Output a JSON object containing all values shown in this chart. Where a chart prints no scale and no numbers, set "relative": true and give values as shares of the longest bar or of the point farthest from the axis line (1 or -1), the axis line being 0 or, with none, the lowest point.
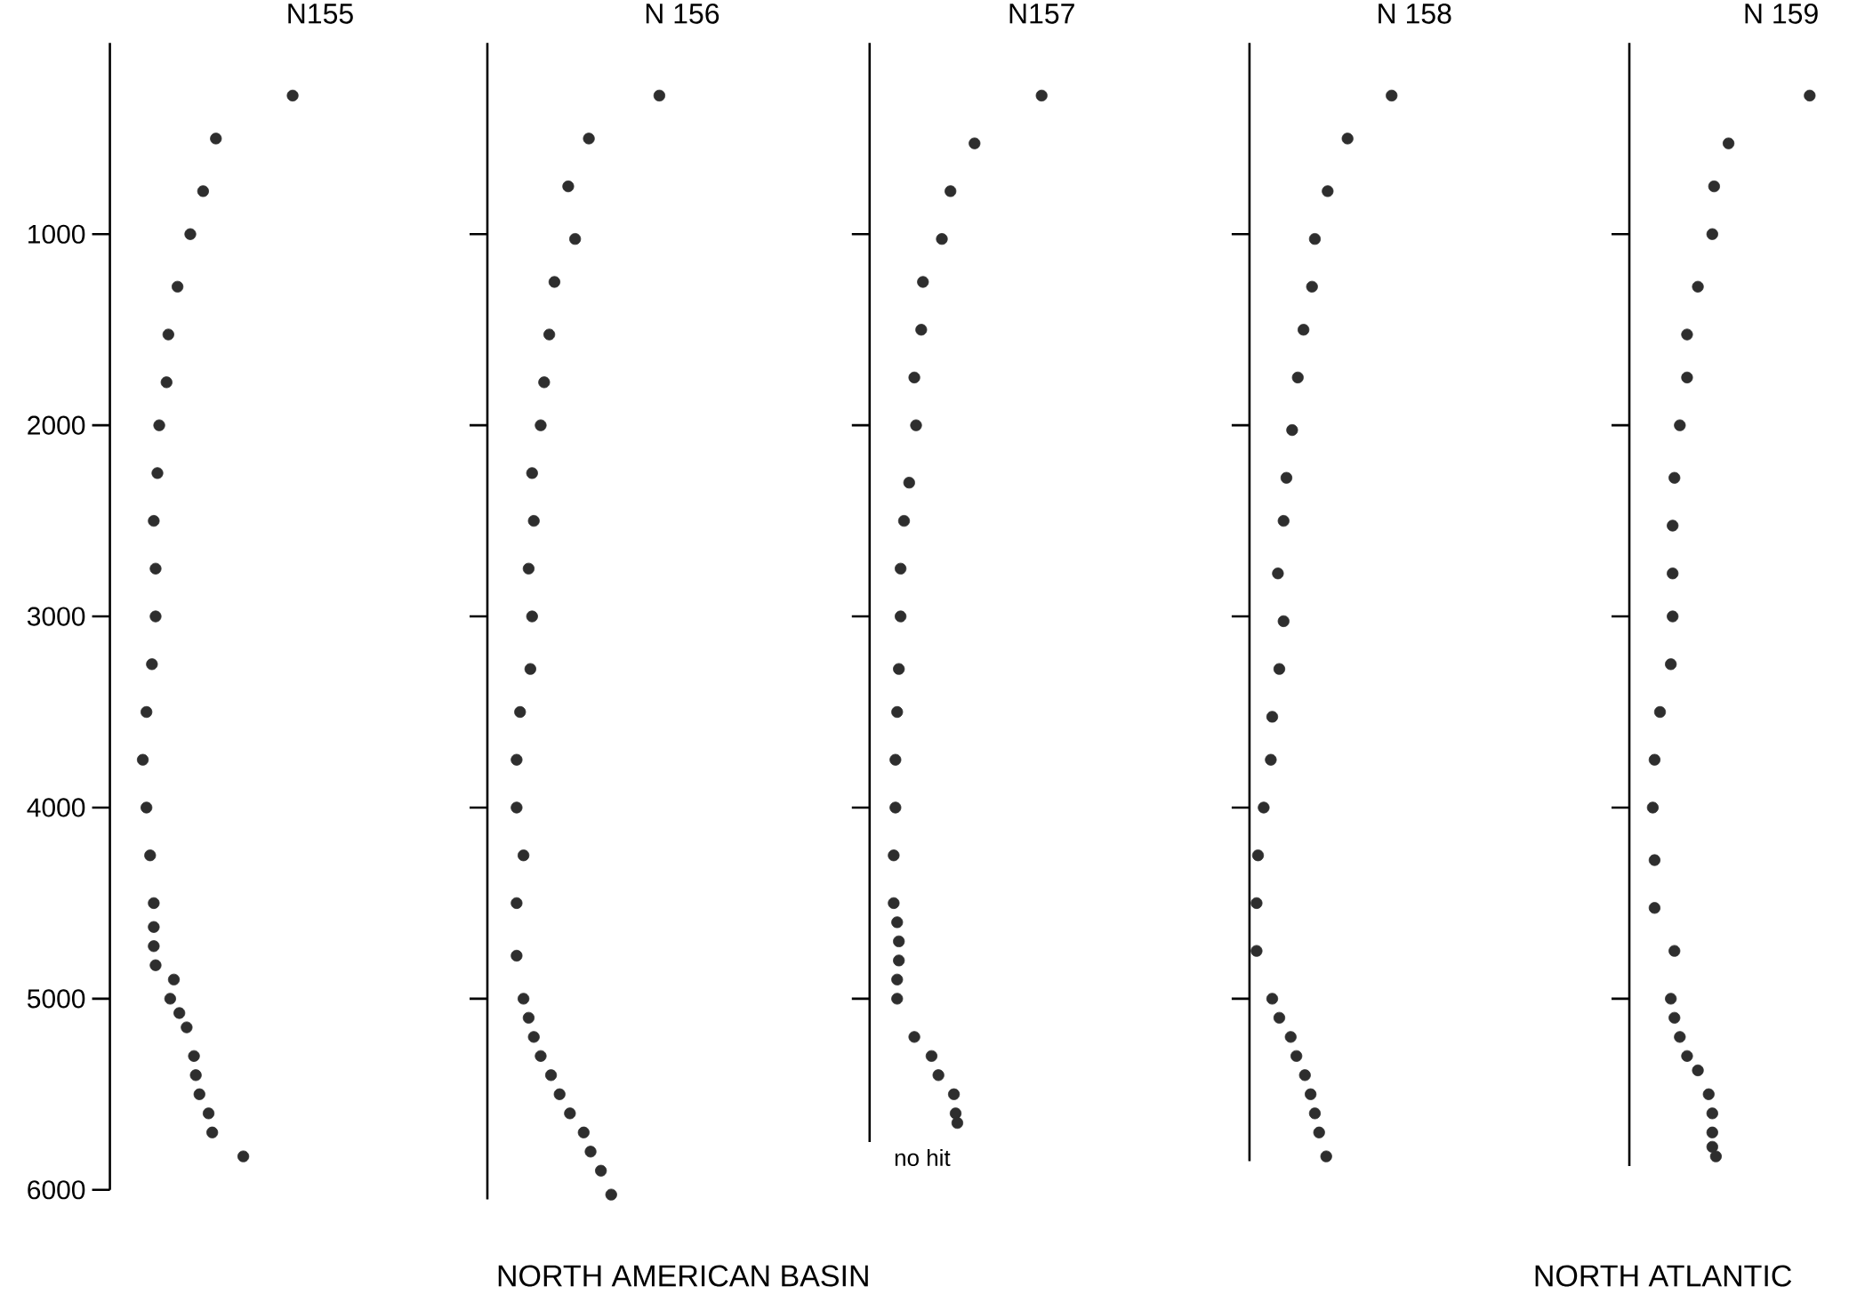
{
  "chart_data": [
    {
      "type": "scatter",
      "title": "N155",
      "orientation": "horizontal",
      "relative": true,
      "marker": "circle",
      "color": "#2e2e2e",
      "tick_labels": "y",
      "x": [
        275,
        500,
        775,
        1000,
        1275,
        1525,
        1775,
        2000,
        2250,
        2500,
        2750,
        3000,
        3250,
        3500,
        3750,
        4000,
        4250,
        4500,
        4625,
        4725,
        4825,
        4900,
        5000,
        5075,
        5150,
        5300,
        5400,
        5500,
        5600,
        5700,
        5825
      ],
      "values": [
        1,
        0.58,
        0.51,
        0.44,
        0.37,
        0.32,
        0.31,
        0.27,
        0.26,
        0.24,
        0.25,
        0.25,
        0.23,
        0.2,
        0.18,
        0.2,
        0.22,
        0.24,
        0.24,
        0.24,
        0.25,
        0.35,
        0.33,
        0.38,
        0.42,
        0.46,
        0.47,
        0.49,
        0.54,
        0.56,
        0.73
      ],
      "ylim": [
        6000,
        0
      ],
      "yticks": [
        1000,
        2000,
        3000,
        4000,
        5000,
        6000
      ]
    },
    {
      "type": "scatter",
      "title": "N 156",
      "orientation": "horizontal",
      "relative": true,
      "marker": "circle",
      "color": "#2e2e2e",
      "tick_labels": false,
      "x": [
        275,
        500,
        750,
        1025,
        1250,
        1525,
        1775,
        2000,
        2250,
        2500,
        2750,
        3000,
        3275,
        3500,
        3750,
        4000,
        4250,
        4500,
        4775,
        5000,
        5100,
        5200,
        5300,
        5400,
        5500,
        5600,
        5700,
        5800,
        5900,
        6025
      ],
      "values": [
        1,
        0.59,
        0.47,
        0.51,
        0.39,
        0.36,
        0.33,
        0.31,
        0.26,
        0.27,
        0.24,
        0.26,
        0.25,
        0.19,
        0.17,
        0.17,
        0.21,
        0.17,
        0.17,
        0.21,
        0.24,
        0.27,
        0.31,
        0.37,
        0.42,
        0.48,
        0.56,
        0.6,
        0.66,
        0.72
      ],
      "ylim": [
        6050,
        0
      ],
      "yticks": [
        1000,
        2000,
        3000,
        4000,
        5000
      ],
      "annotations": [
        "NORTH AMERICAN BASIN"
      ]
    },
    {
      "type": "scatter",
      "title": "N157",
      "orientation": "horizontal",
      "relative": true,
      "marker": "circle",
      "color": "#2e2e2e",
      "tick_labels": false,
      "x": [
        275,
        525,
        775,
        1025,
        1250,
        1500,
        1750,
        2000,
        2300,
        2500,
        2750,
        3000,
        3275,
        3500,
        3750,
        4000,
        4250,
        4500,
        4600,
        4700,
        4800,
        4900,
        5000,
        5200,
        5300,
        5400,
        5500,
        5600,
        5650
      ],
      "values": [
        1,
        0.61,
        0.47,
        0.42,
        0.31,
        0.3,
        0.26,
        0.27,
        0.23,
        0.2,
        0.18,
        0.18,
        0.17,
        0.16,
        0.15,
        0.15,
        0.14,
        0.14,
        0.16,
        0.17,
        0.17,
        0.16,
        0.16,
        0.26,
        0.36,
        0.4,
        0.49,
        0.5,
        0.51
      ],
      "ylim": [
        5750,
        0
      ],
      "yticks": [
        1000,
        2000,
        3000,
        4000,
        5000
      ],
      "annotations": [
        "no hit"
      ]
    },
    {
      "type": "scatter",
      "title": "N 158",
      "orientation": "horizontal",
      "relative": true,
      "marker": "circle",
      "color": "#2e2e2e",
      "tick_labels": false,
      "x": [
        275,
        500,
        775,
        1025,
        1275,
        1500,
        1750,
        2025,
        2275,
        2500,
        2775,
        3025,
        3275,
        3525,
        3750,
        4000,
        4250,
        4500,
        4750,
        5000,
        5100,
        5200,
        5300,
        5400,
        5500,
        5600,
        5700,
        5825
      ],
      "values": [
        1,
        0.69,
        0.55,
        0.46,
        0.44,
        0.38,
        0.34,
        0.3,
        0.26,
        0.24,
        0.2,
        0.24,
        0.21,
        0.16,
        0.15,
        0.1,
        0.06,
        0.05,
        0.05,
        0.16,
        0.21,
        0.29,
        0.33,
        0.39,
        0.43,
        0.46,
        0.49,
        0.54
      ],
      "ylim": [
        5850,
        0
      ],
      "yticks": [
        1000,
        2000,
        3000,
        4000,
        5000
      ]
    },
    {
      "type": "scatter",
      "title": "N 159",
      "orientation": "horizontal",
      "relative": true,
      "marker": "circle",
      "color": "#2e2e2e",
      "tick_labels": false,
      "x": [
        275,
        525,
        750,
        1000,
        1275,
        1525,
        1750,
        2000,
        2275,
        2525,
        2775,
        3000,
        3250,
        3500,
        3750,
        4000,
        4275,
        4525,
        4750,
        5000,
        5100,
        5200,
        5300,
        5375,
        5500,
        5600,
        5700,
        5775,
        5825
      ],
      "values": [
        1,
        0.55,
        0.47,
        0.46,
        0.38,
        0.32,
        0.32,
        0.28,
        0.25,
        0.24,
        0.24,
        0.24,
        0.23,
        0.17,
        0.14,
        0.13,
        0.14,
        0.14,
        0.25,
        0.23,
        0.25,
        0.28,
        0.32,
        0.38,
        0.44,
        0.46,
        0.46,
        0.46,
        0.48
      ],
      "ylim": [
        5875,
        0
      ],
      "yticks": [
        1000,
        2000,
        3000,
        4000,
        5000
      ],
      "annotations": [
        "NORTH ATLANTIC"
      ]
    }
  ]
}
